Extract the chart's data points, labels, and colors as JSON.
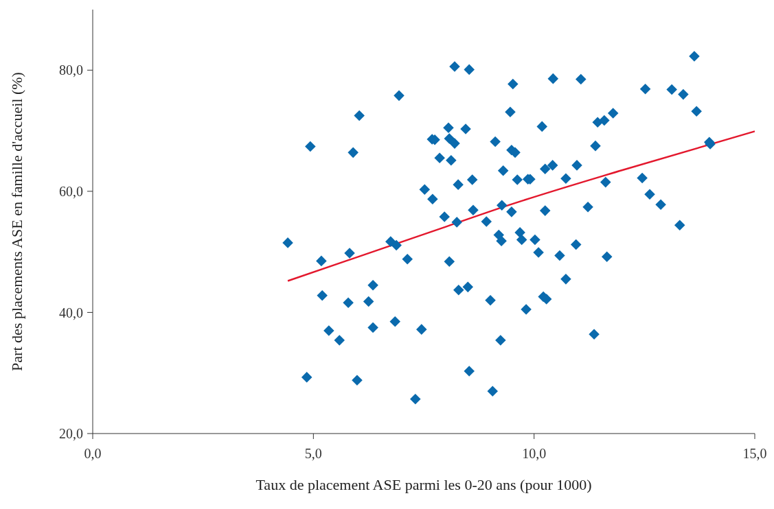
{
  "chart_data": {
    "type": "scatter",
    "xlabel": "Taux de placement ASE parmi les 0-20 ans (pour 1000)",
    "ylabel": "Part des placements ASE en famille d'accueil  (%)",
    "xlim": [
      0,
      15
    ],
    "ylim": [
      20,
      90
    ],
    "xticks": [
      {
        "value": 0,
        "label": "0,0"
      },
      {
        "value": 5,
        "label": "5,0"
      },
      {
        "value": 10,
        "label": "10,0"
      },
      {
        "value": 15,
        "label": "15,0"
      }
    ],
    "yticks": [
      {
        "value": 20,
        "label": "20,0"
      },
      {
        "value": 40,
        "label": "40,0"
      },
      {
        "value": 60,
        "label": "60,0"
      },
      {
        "value": 80,
        "label": "80,0"
      }
    ],
    "series": [
      {
        "marker": "diamond",
        "color": "#0a6aad",
        "x": [
          4.42,
          4.93,
          4.85,
          5.18,
          5.2,
          5.35,
          5.59,
          5.79,
          5.82,
          5.9,
          5.99,
          6.04,
          6.25,
          6.35,
          6.35,
          6.75,
          6.88,
          6.85,
          6.94,
          7.13,
          7.31,
          7.45,
          7.52,
          7.7,
          7.69,
          7.75,
          7.86,
          7.97,
          8.06,
          8.08,
          8.12,
          8.08,
          8.2,
          8.2,
          8.25,
          8.28,
          8.29,
          8.45,
          8.5,
          8.53,
          8.53,
          8.6,
          8.62,
          8.92,
          9.01,
          9.06,
          9.12,
          9.2,
          9.26,
          9.27,
          9.24,
          9.3,
          9.46,
          9.49,
          9.49,
          9.52,
          9.57,
          9.62,
          9.68,
          9.72,
          9.82,
          9.86,
          9.91,
          10.02,
          10.1,
          10.18,
          10.21,
          10.25,
          10.25,
          10.28,
          10.42,
          10.43,
          10.58,
          10.72,
          10.72,
          10.95,
          10.97,
          11.06,
          11.22,
          11.39,
          11.36,
          11.44,
          11.59,
          11.62,
          11.65,
          11.79,
          12.45,
          12.52,
          12.62,
          12.87,
          13.12,
          13.3,
          13.38,
          13.63,
          13.68,
          13.97,
          13.99
        ],
        "values": [
          51.5,
          67.4,
          29.3,
          48.5,
          42.8,
          37,
          35.4,
          41.6,
          49.8,
          66.4,
          28.8,
          72.5,
          41.8,
          44.5,
          37.5,
          51.7,
          51.1,
          38.5,
          75.8,
          48.8,
          25.7,
          37.2,
          60.3,
          58.7,
          68.6,
          68.5,
          65.5,
          55.8,
          70.5,
          68.7,
          65.1,
          48.4,
          80.6,
          67.9,
          54.9,
          61.1,
          43.7,
          70.3,
          44.2,
          80.1,
          30.3,
          61.9,
          56.9,
          55,
          42,
          27,
          68.2,
          52.8,
          51.8,
          57.7,
          35.4,
          63.4,
          73.1,
          66.8,
          56.6,
          77.7,
          66.4,
          61.9,
          53.2,
          52,
          40.5,
          62,
          62,
          52,
          49.9,
          70.7,
          42.6,
          63.7,
          56.8,
          42.2,
          64.3,
          78.6,
          49.4,
          45.5,
          62.1,
          51.2,
          64.3,
          78.5,
          57.4,
          67.5,
          36.4,
          71.4,
          71.7,
          61.5,
          49.2,
          72.9,
          62.2,
          76.9,
          59.5,
          57.8,
          76.8,
          54.4,
          76,
          82.3,
          73.2,
          68.1,
          67.8
        ]
      },
      {
        "type": "line",
        "color": "#e3182d",
        "x": [
          4.42,
          6.5,
          8.02,
          9.42,
          12,
          15
        ],
        "values": [
          45.2,
          50.4,
          54.2,
          57.7,
          63.5,
          69.9
        ]
      }
    ]
  }
}
